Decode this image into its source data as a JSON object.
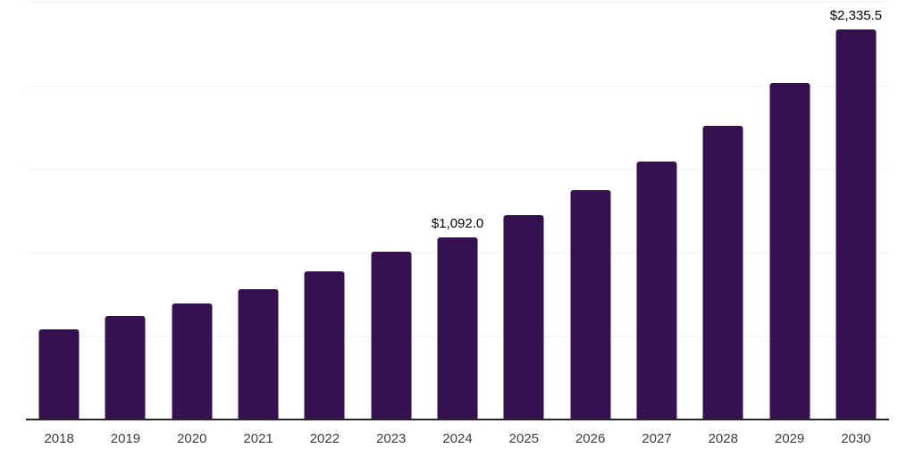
{
  "chart_data": {
    "type": "bar",
    "title": "",
    "xlabel": "",
    "ylabel": "",
    "categories": [
      "2018",
      "2019",
      "2020",
      "2021",
      "2022",
      "2023",
      "2024",
      "2025",
      "2026",
      "2027",
      "2028",
      "2029",
      "2030"
    ],
    "values": [
      540,
      618,
      692,
      781,
      886,
      1003,
      1092.0,
      1224,
      1372,
      1543,
      1756,
      2012,
      2335.5
    ],
    "value_labels": [
      {
        "category": "2024",
        "text": "$1,092.0"
      },
      {
        "category": "2030",
        "text": "$2,335.5"
      }
    ],
    "ylim": [
      0,
      2500
    ],
    "gridline_values": [
      500,
      1000,
      1500,
      2000,
      2500
    ],
    "grid": "horizontal-only",
    "legend": "none",
    "y_axis_ticks_visible": false,
    "colors": {
      "bar": "#361150",
      "axis_line": "#262626",
      "gridline": "#f2f2f2",
      "value_label": "#000000",
      "tick_label": "#3c3c3c",
      "background": "#ffffff"
    }
  }
}
